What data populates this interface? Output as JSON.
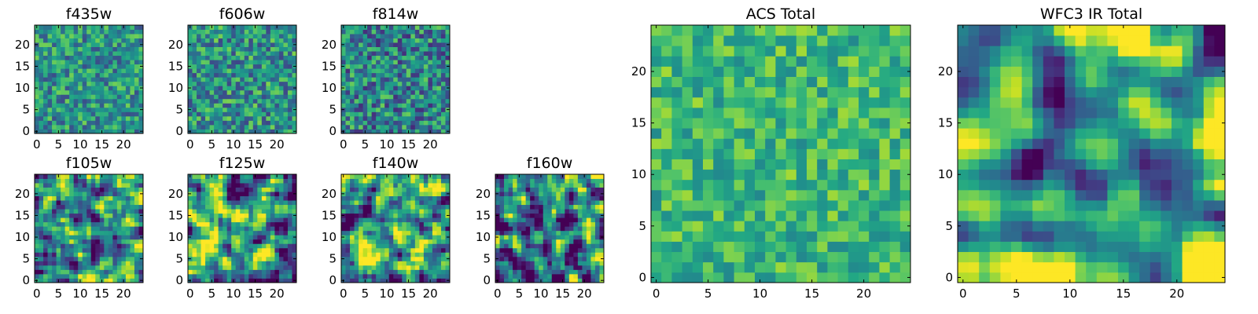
{
  "colormap": "viridis",
  "chart_data": [
    {
      "type": "heatmap",
      "title": "f435w",
      "grid_size": 25,
      "seed": 11,
      "smooth": 0,
      "bias": 0.52,
      "spread": 0.55,
      "xlim": [
        -0.5,
        24.5
      ],
      "ylim": [
        -0.5,
        24.5
      ],
      "xticks": [
        0,
        5,
        10,
        15,
        20
      ],
      "yticks": [
        0,
        5,
        10,
        15,
        20
      ]
    },
    {
      "type": "heatmap",
      "title": "f606w",
      "grid_size": 25,
      "seed": 23,
      "smooth": 0,
      "bias": 0.5,
      "spread": 0.6,
      "xlim": [
        -0.5,
        24.5
      ],
      "ylim": [
        -0.5,
        24.5
      ],
      "xticks": [
        0,
        5,
        10,
        15,
        20
      ],
      "yticks": [
        0,
        5,
        10,
        15,
        20
      ]
    },
    {
      "type": "heatmap",
      "title": "f814w",
      "grid_size": 25,
      "seed": 37,
      "smooth": 0,
      "bias": 0.45,
      "spread": 0.65,
      "xlim": [
        -0.5,
        24.5
      ],
      "ylim": [
        -0.5,
        24.5
      ],
      "xticks": [
        0,
        5,
        10,
        15,
        20
      ],
      "yticks": [
        0,
        5,
        10,
        15,
        20
      ]
    },
    {
      "type": "heatmap",
      "title": "f105w",
      "grid_size": 25,
      "seed": 41,
      "smooth": 1,
      "bias": 0.5,
      "spread": 0.9,
      "xlim": [
        -0.5,
        24.5
      ],
      "ylim": [
        -0.5,
        24.5
      ],
      "xticks": [
        0,
        5,
        10,
        15,
        20
      ],
      "yticks": [
        0,
        5,
        10,
        15,
        20
      ]
    },
    {
      "type": "heatmap",
      "title": "f125w",
      "grid_size": 25,
      "seed": 53,
      "smooth": 1,
      "bias": 0.52,
      "spread": 0.9,
      "xlim": [
        -0.5,
        24.5
      ],
      "ylim": [
        -0.5,
        24.5
      ],
      "xticks": [
        0,
        5,
        10,
        15,
        20
      ],
      "yticks": [
        0,
        5,
        10,
        15,
        20
      ]
    },
    {
      "type": "heatmap",
      "title": "f140w",
      "grid_size": 25,
      "seed": 67,
      "smooth": 1,
      "bias": 0.55,
      "spread": 0.9,
      "xlim": [
        -0.5,
        24.5
      ],
      "ylim": [
        -0.5,
        24.5
      ],
      "xticks": [
        0,
        5,
        10,
        15,
        20
      ],
      "yticks": [
        0,
        5,
        10,
        15,
        20
      ]
    },
    {
      "type": "heatmap",
      "title": "f160w",
      "grid_size": 25,
      "seed": 79,
      "smooth": 1,
      "bias": 0.4,
      "spread": 1.0,
      "xlim": [
        -0.5,
        24.5
      ],
      "ylim": [
        -0.5,
        24.5
      ],
      "xticks": [
        0,
        5,
        10,
        15,
        20
      ],
      "yticks": [
        0,
        5,
        10,
        15,
        20
      ]
    },
    {
      "type": "heatmap",
      "title": "ACS Total",
      "grid_size": 25,
      "seed": 91,
      "smooth": 0,
      "bias": 0.66,
      "spread": 0.4,
      "xlim": [
        -0.5,
        24.5
      ],
      "ylim": [
        -0.5,
        24.5
      ],
      "xticks": [
        0,
        5,
        10,
        15,
        20
      ],
      "yticks": [
        0,
        5,
        10,
        15,
        20
      ]
    },
    {
      "type": "heatmap",
      "title": "WFC3 IR Total",
      "grid_size": 25,
      "seed": 103,
      "smooth": 2,
      "bias": 0.58,
      "spread": 1.3,
      "xlim": [
        -0.5,
        24.5
      ],
      "ylim": [
        -0.5,
        24.5
      ],
      "xticks": [
        0,
        5,
        10,
        15,
        20
      ],
      "yticks": [
        0,
        5,
        10,
        15,
        20
      ]
    }
  ]
}
